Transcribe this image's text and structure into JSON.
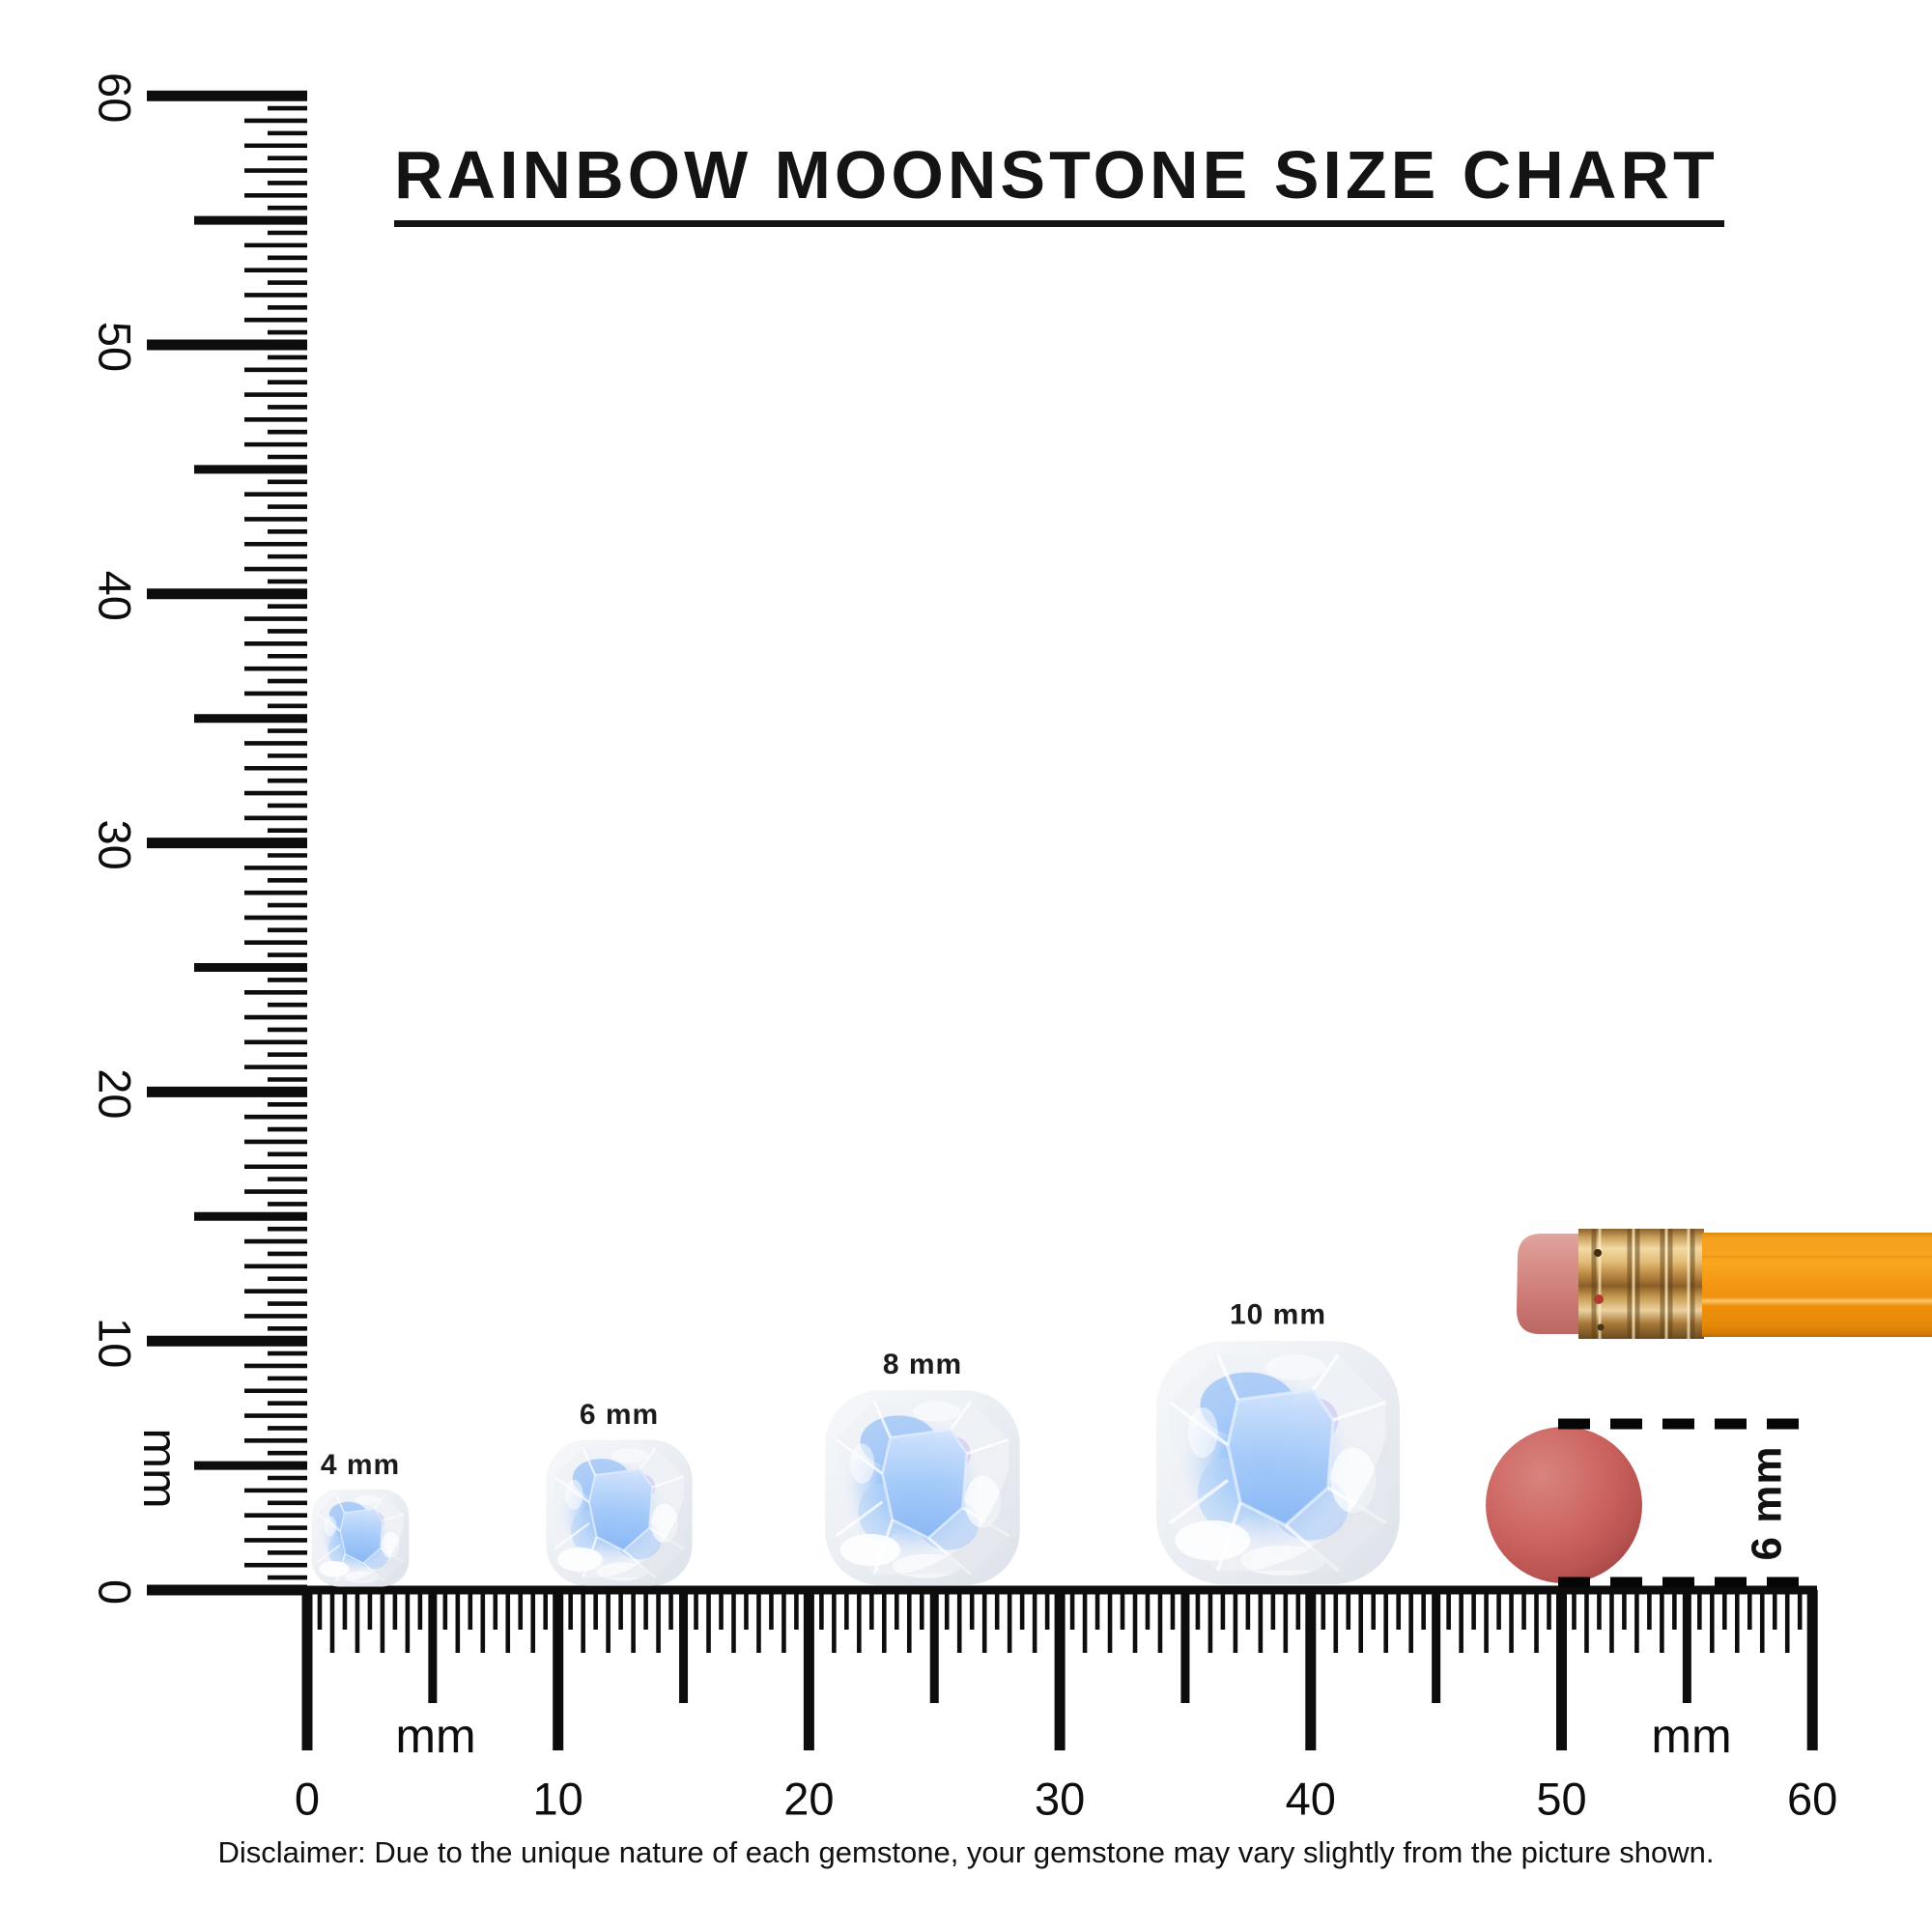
{
  "title": "RAINBOW MOONSTONE SIZE CHART",
  "rulers": {
    "vertical": {
      "unit": "mm",
      "labels": [
        0,
        10,
        20,
        30,
        40,
        50,
        60
      ],
      "range_mm": [
        0,
        60
      ]
    },
    "horizontal": {
      "unit": "mm",
      "labels": [
        0,
        10,
        20,
        30,
        40,
        50,
        60
      ],
      "range_mm": [
        0,
        60
      ]
    }
  },
  "gems": [
    {
      "label": "4 mm",
      "size_mm": 4
    },
    {
      "label": "6 mm",
      "size_mm": 6
    },
    {
      "label": "8 mm",
      "size_mm": 8
    },
    {
      "label": "10 mm",
      "size_mm": 10
    }
  ],
  "eraser_measurement": {
    "label": "6 mm",
    "diameter_mm": 6
  },
  "disclaimer": "Disclaimer: Due to the unique nature of each gemstone, your gemstone may vary slightly from the picture shown.",
  "colors": {
    "ink": "#141414",
    "gem_blue": "#9dc6f8",
    "gem_rim": "#e9edf2",
    "eraser_disc_red": "#c75e5b",
    "pencil_orange": "#f8a01d",
    "ferrule_gold": "#d9ab62",
    "pencil_eraser_pink": "#d58f8a"
  }
}
